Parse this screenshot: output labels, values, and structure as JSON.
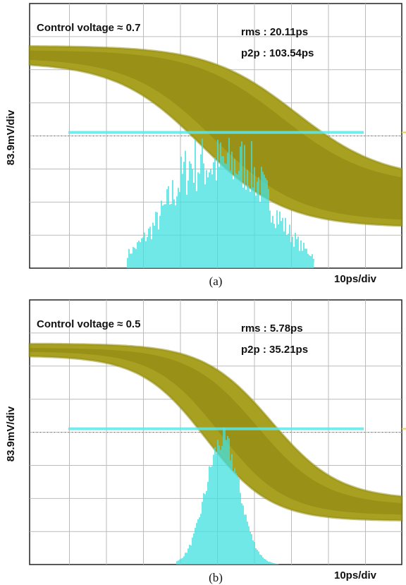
{
  "panels": [
    {
      "control": "Control voltage ≈ 0.7",
      "rms": "rms : 20.11ps",
      "p2p": "p2p : 103.54ps",
      "y_scale": "83.9mV/div",
      "x_scale": "10ps/div",
      "caption": "(a)"
    },
    {
      "control": "Control voltage ≈ 0.5",
      "rms": "rms : 5.78ps",
      "p2p": "p2p : 35.21ps",
      "y_scale": "83.9mV/div",
      "x_scale": "10ps/div",
      "caption": "(b)"
    }
  ]
}
